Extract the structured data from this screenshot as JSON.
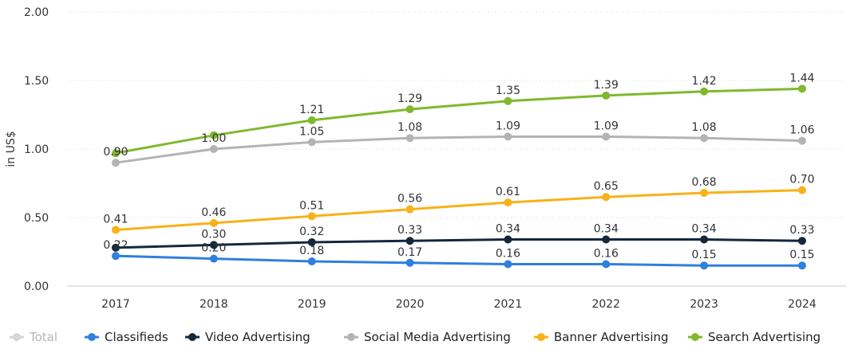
{
  "chart_data": {
    "type": "line",
    "title": "",
    "xlabel": "",
    "ylabel": "in US$",
    "ylim": [
      0,
      2
    ],
    "yticks": [
      "0.00",
      "0.50",
      "1.00",
      "1.50",
      "2.00"
    ],
    "ytick_values": [
      0,
      0.5,
      1,
      1.5,
      2
    ],
    "grid": true,
    "legend_position": "bottom",
    "categories": [
      "2017",
      "2018",
      "2019",
      "2020",
      "2021",
      "2022",
      "2023",
      "2024"
    ],
    "series": [
      {
        "name": "Classifieds",
        "color": "#2f7fe0",
        "values": [
          0.22,
          0.2,
          0.18,
          0.17,
          0.16,
          0.16,
          0.15,
          0.15
        ],
        "labels": [
          "0.22",
          "0.20",
          "0.18",
          "0.17",
          "0.16",
          "0.16",
          "0.15",
          "0.15"
        ]
      },
      {
        "name": "Video Advertising",
        "color": "#14283c",
        "values": [
          0.28,
          0.3,
          0.32,
          0.33,
          0.34,
          0.34,
          0.34,
          0.33
        ],
        "labels": [
          "",
          "0.30",
          "0.32",
          "0.33",
          "0.34",
          "0.34",
          "0.34",
          "0.33"
        ]
      },
      {
        "name": "Social Media Advertising",
        "color": "#b4b4b4",
        "values": [
          0.9,
          1.0,
          1.05,
          1.08,
          1.09,
          1.09,
          1.08,
          1.06
        ],
        "labels": [
          "0.90",
          "1.00",
          "1.05",
          "1.08",
          "1.09",
          "1.09",
          "1.08",
          "1.06"
        ]
      },
      {
        "name": "Banner Advertising",
        "color": "#f9b118",
        "values": [
          0.41,
          0.46,
          0.51,
          0.56,
          0.61,
          0.65,
          0.68,
          0.7
        ],
        "labels": [
          "0.41",
          "0.46",
          "0.51",
          "0.56",
          "0.61",
          "0.65",
          "0.68",
          "0.70"
        ]
      },
      {
        "name": "Search Advertising",
        "color": "#80b82e",
        "values": [
          0.97,
          1.1,
          1.21,
          1.29,
          1.35,
          1.39,
          1.42,
          1.44
        ],
        "labels": [
          "",
          "",
          "1.21",
          "1.29",
          "1.35",
          "1.39",
          "1.42",
          "1.44"
        ]
      }
    ],
    "legend": [
      {
        "name": "Total",
        "color": "#d6d6d6",
        "text_color": "#b5b5b5"
      },
      {
        "name": "Classifieds",
        "color": "#2f7fe0",
        "text_color": "#222222"
      },
      {
        "name": "Video Advertising",
        "color": "#14283c",
        "text_color": "#222222"
      },
      {
        "name": "Social Media Advertising",
        "color": "#b4b4b4",
        "text_color": "#222222"
      },
      {
        "name": "Banner Advertising",
        "color": "#f9b118",
        "text_color": "#222222"
      },
      {
        "name": "Search Advertising",
        "color": "#80b82e",
        "text_color": "#222222"
      }
    ]
  }
}
